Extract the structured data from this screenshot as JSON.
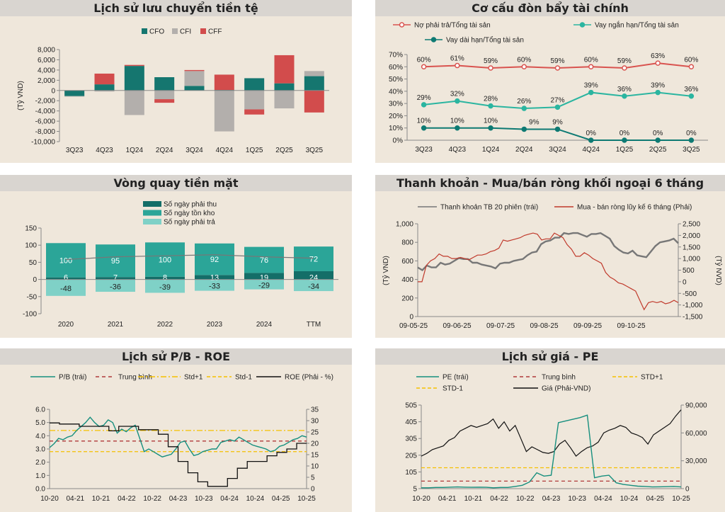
{
  "colors": {
    "cfo": "#15766F",
    "cfi": "#B3AFAC",
    "cff": "#D24C4C",
    "red": "#D9534F",
    "teal": "#2BB5A0",
    "darkteal": "#0E7A73",
    "dk": "#146E68",
    "mid": "#2BA598",
    "light": "#7FD1C7",
    "gray": "#777777",
    "yellow": "#F5C000",
    "black": "#111111"
  },
  "panels": {
    "p1": "Lịch sử lưu chuyển tiền tệ",
    "p2": "Cơ cấu đòn bẩy tài chính",
    "p3": "Vòng quay tiền mặt",
    "p4": "Thanh khoản - Mua/bán ròng khối ngoại 6 tháng",
    "p5": "Lịch sử P/B - ROE",
    "p6": "Lịch sử giá - PE"
  },
  "chart_data": [
    {
      "type": "bar",
      "stacked": true,
      "title": "Lịch sử lưu chuyển tiền tệ",
      "ylabel": "(Tỷ VND)",
      "ylim": [
        -10000,
        8000
      ],
      "yticks": [
        "8,000",
        "6,000",
        "4,000",
        "2,000",
        "0",
        "-2,000",
        "-4,000",
        "-6,000",
        "-8,000",
        "-10,000"
      ],
      "categories": [
        "3Q23",
        "4Q23",
        "1Q24",
        "2Q24",
        "3Q24",
        "4Q24",
        "1Q25",
        "2Q25",
        "3Q25"
      ],
      "legend": "top",
      "series": [
        {
          "name": "CFO",
          "values": [
            -1100,
            1200,
            4800,
            2600,
            900,
            100,
            2400,
            1400,
            2800
          ]
        },
        {
          "name": "CFI",
          "values": [
            -100,
            -200,
            -4800,
            -1700,
            2900,
            -8000,
            -3700,
            -3500,
            1000
          ]
        },
        {
          "name": "CFF",
          "values": [
            0,
            2100,
            200,
            -700,
            200,
            3000,
            -1000,
            5500,
            -4300
          ]
        }
      ]
    },
    {
      "type": "line",
      "title": "Cơ cấu đòn bẩy tài chính",
      "ylim": [
        0,
        70
      ],
      "yticks": [
        "70%",
        "60%",
        "50%",
        "40%",
        "30%",
        "20%",
        "10%",
        "0%"
      ],
      "categories": [
        "3Q23",
        "4Q23",
        "1Q24",
        "2Q24",
        "3Q24",
        "4Q24",
        "1Q25",
        "2Q25",
        "3Q25"
      ],
      "legend": "top",
      "series": [
        {
          "name": "Nợ phải trả/Tổng tài sản",
          "values": [
            60,
            61,
            59,
            60,
            59,
            60,
            59,
            63,
            60
          ]
        },
        {
          "name": "Vay ngắn hạn/Tổng tài sản",
          "values": [
            29,
            32,
            28,
            26,
            27,
            39,
            36,
            39,
            36
          ]
        },
        {
          "name": "Vay dài hạn/Tổng tài sản",
          "values": [
            10,
            10,
            10,
            9,
            9,
            0,
            0,
            0,
            0
          ]
        }
      ]
    },
    {
      "type": "bar",
      "stacked": true,
      "title": "Vòng quay tiền mặt",
      "ylim": [
        -100,
        150
      ],
      "yticks": [
        "150",
        "100",
        "50",
        "0",
        "-50",
        "-100"
      ],
      "categories": [
        "2020",
        "2021",
        "2022",
        "2023",
        "2024",
        "TTM"
      ],
      "legend": "top",
      "series": [
        {
          "name": "Số ngày phải thu",
          "values": [
            6,
            7,
            8,
            13,
            19,
            24
          ]
        },
        {
          "name": "Số ngày tồn kho",
          "values": [
            100,
            95,
            100,
            92,
            76,
            72
          ]
        },
        {
          "name": "Số ngày phải trả",
          "values": [
            -48,
            -36,
            -39,
            -33,
            -29,
            -34
          ]
        }
      ],
      "line": [
        58,
        66,
        69,
        72,
        66,
        62
      ]
    },
    {
      "type": "line",
      "title": "Thanh khoản - Mua/bán ròng khối ngoại 6 tháng",
      "ylabel": "(Tỷ VND)",
      "y2label": "(Tỷ NVD)",
      "ylim": [
        0,
        1000
      ],
      "y2lim": [
        -1500,
        2500
      ],
      "yticks": [
        "1,000",
        "800",
        "600",
        "400",
        "200",
        "0"
      ],
      "y2ticks": [
        "2,500",
        "2,000",
        "1,500",
        "1,000",
        "500",
        "0",
        "-500",
        "-1,000",
        "-1,500"
      ],
      "xticks": [
        "09-05-25",
        "09-06-25",
        "09-07-25",
        "09-08-25",
        "09-09-25",
        "09-10-25"
      ],
      "legend": "top",
      "series": [
        {
          "name": "Thanh khoản TB 20 phiên (trái)",
          "axis": "left",
          "values": [
            530,
            500,
            550,
            530,
            530,
            580,
            560,
            570,
            600,
            630,
            620,
            620,
            580,
            580,
            560,
            550,
            540,
            520,
            570,
            580,
            580,
            600,
            610,
            620,
            660,
            690,
            700,
            780,
            810,
            820,
            850,
            850,
            900,
            890,
            900,
            900,
            880,
            860,
            890,
            890,
            900,
            870,
            840,
            760,
            720,
            690,
            680,
            710,
            660,
            650,
            640,
            700,
            760,
            800,
            810,
            820,
            840,
            790
          ]
        },
        {
          "name": "Mua - bán ròng lũy kế 6 tháng (Phải)",
          "axis": "right",
          "values": [
            0,
            0,
            700,
            900,
            1000,
            1200,
            1100,
            1100,
            1000,
            1000,
            1050,
            1000,
            950,
            1050,
            1150,
            1150,
            1200,
            1300,
            1350,
            1450,
            1800,
            1750,
            1800,
            1850,
            1900,
            2000,
            2050,
            2100,
            2050,
            1800,
            1850,
            1850,
            2100,
            2000,
            1900,
            1600,
            1400,
            1100,
            1100,
            1250,
            1150,
            1000,
            900,
            800,
            400,
            200,
            100,
            -50,
            -100,
            -200,
            -300,
            -400,
            -800,
            -1200,
            -900,
            -850,
            -900,
            -850,
            -950,
            -900,
            -800,
            -900
          ]
        }
      ]
    },
    {
      "type": "line",
      "title": "Lịch sử P/B - ROE",
      "ylim": [
        0,
        6
      ],
      "y2lim": [
        0,
        35
      ],
      "yticks": [
        "6.0",
        "5.0",
        "4.0",
        "3.0",
        "2.0",
        "1.0",
        "0.0"
      ],
      "y2ticks": [
        "35",
        "30",
        "25",
        "20",
        "15",
        "10",
        "5",
        "0"
      ],
      "xticks": [
        "10-20",
        "04-21",
        "10-21",
        "04-22",
        "10-22",
        "04-23",
        "10-23",
        "04-24",
        "10-24",
        "04-25",
        "10-25"
      ],
      "legend": "top",
      "series": [
        {
          "name": "P/B (trái)",
          "values": [
            3.1,
            3.4,
            3.8,
            3.7,
            3.9,
            4.0,
            4.4,
            4.7,
            5.0,
            5.4,
            5.0,
            4.7,
            4.8,
            5.2,
            5.0,
            4.2,
            4.5,
            4.3,
            4.6,
            4.8,
            3.8,
            2.8,
            3.0,
            2.8,
            2.6,
            2.4,
            2.5,
            2.6,
            3.0,
            3.5,
            3.6,
            3.0,
            2.5,
            2.6,
            2.8,
            2.9,
            3.0,
            3.0,
            3.5,
            3.6,
            3.7,
            3.6,
            3.9,
            3.7,
            3.5,
            3.3,
            3.2,
            3.1,
            3.0,
            2.8,
            2.9,
            3.2,
            3.3,
            3.5,
            3.7,
            3.8,
            4.0,
            3.9
          ]
        },
        {
          "name": "Trung bình",
          "value": 3.6
        },
        {
          "name": "Std+1",
          "value": 4.4
        },
        {
          "name": "Std-1",
          "value": 2.8
        },
        {
          "name": "ROE (Phải - %)",
          "values": [
            29,
            28.5,
            28.5,
            27.5,
            27.5,
            27.5,
            25.5,
            27.5,
            27.5,
            26,
            26,
            24,
            18.5,
            12,
            7,
            3,
            1,
            1,
            4.5,
            9,
            12,
            12,
            14.5,
            16,
            17.5,
            20
          ]
        }
      ]
    },
    {
      "type": "line",
      "title": "Lịch sử giá - PE",
      "ylim": [
        5,
        505
      ],
      "y2lim": [
        0,
        90000
      ],
      "yticks": [
        "505",
        "405",
        "305",
        "205",
        "105",
        "5"
      ],
      "y2ticks": [
        "90,000",
        "60,000",
        "30,000",
        "0"
      ],
      "xticks": [
        "10-20",
        "04-21",
        "10-21",
        "04-22",
        "10-22",
        "04-23",
        "10-23",
        "04-24",
        "10-24",
        "04-25",
        "10-25"
      ],
      "legend": "top",
      "series": [
        {
          "name": "PE (trái)",
          "values": [
            10,
            10,
            12,
            12,
            14,
            15,
            14,
            13,
            14,
            13,
            10,
            12,
            12,
            18,
            25,
            45,
            100,
            80,
            85,
            400,
            410,
            420,
            430,
            445,
            70,
            80,
            85,
            40,
            30,
            25,
            20,
            18,
            15,
            16,
            17,
            18,
            15
          ]
        },
        {
          "name": "Trung bình",
          "value": 50
        },
        {
          "name": "STD+1",
          "value": 130
        },
        {
          "name": "STD-1",
          "value": -30
        },
        {
          "name": "Giá (Phải-VND)",
          "values": [
            35000,
            38000,
            42000,
            44000,
            46000,
            52000,
            55000,
            62000,
            65000,
            68000,
            66000,
            68000,
            70000,
            75000,
            65000,
            72000,
            62000,
            68000,
            54000,
            40000,
            45000,
            42000,
            39000,
            38000,
            40000,
            48000,
            52000,
            44000,
            35000,
            40000,
            44000,
            46000,
            50000,
            60000,
            63000,
            65000,
            68000,
            66000,
            60000,
            58000,
            55000,
            48000,
            58000,
            62000,
            66000,
            70000,
            78000,
            85000
          ]
        }
      ]
    }
  ]
}
